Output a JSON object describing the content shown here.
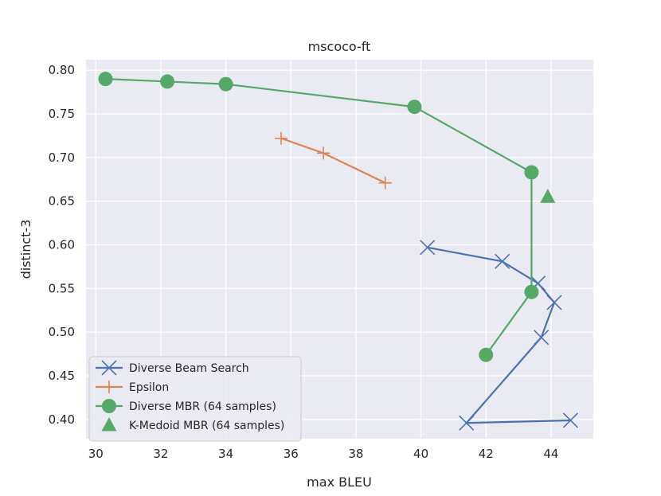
{
  "chart_data": {
    "type": "scatter",
    "title": "mscoco-ft",
    "xlabel": "max BLEU",
    "ylabel": "distinct-3",
    "xlim": [
      29.7,
      45.3
    ],
    "ylim": [
      0.378,
      0.812
    ],
    "xticks": [
      30,
      32,
      34,
      36,
      38,
      40,
      42,
      44
    ],
    "yticks": [
      0.4,
      0.45,
      0.5,
      0.55,
      0.6,
      0.65,
      0.7,
      0.75,
      0.8
    ],
    "xtick_labels": [
      "30",
      "32",
      "34",
      "36",
      "38",
      "40",
      "42",
      "44"
    ],
    "ytick_labels": [
      "0.40",
      "0.45",
      "0.50",
      "0.55",
      "0.60",
      "0.65",
      "0.70",
      "0.75",
      "0.80"
    ],
    "grid": true,
    "legend_position": "lower-left",
    "series": [
      {
        "name": "Diverse Beam Search",
        "color": "#4c72b0",
        "marker": "x",
        "line": true,
        "points": [
          {
            "x": 40.2,
            "y": 0.597
          },
          {
            "x": 42.5,
            "y": 0.581
          },
          {
            "x": 43.6,
            "y": 0.556
          },
          {
            "x": 44.1,
            "y": 0.534
          },
          {
            "x": 43.7,
            "y": 0.494
          },
          {
            "x": 41.4,
            "y": 0.396
          },
          {
            "x": 44.6,
            "y": 0.399
          }
        ]
      },
      {
        "name": "Epsilon",
        "color": "#dd8452",
        "marker": "plus",
        "line": true,
        "points": [
          {
            "x": 35.7,
            "y": 0.722
          },
          {
            "x": 37.0,
            "y": 0.705
          },
          {
            "x": 38.9,
            "y": 0.671
          }
        ]
      },
      {
        "name": "Diverse MBR (64 samples)",
        "color": "#55a868",
        "marker": "circle",
        "line": true,
        "points": [
          {
            "x": 30.3,
            "y": 0.79
          },
          {
            "x": 32.2,
            "y": 0.787
          },
          {
            "x": 34.0,
            "y": 0.784
          },
          {
            "x": 39.8,
            "y": 0.758
          },
          {
            "x": 43.4,
            "y": 0.683
          },
          {
            "x": 43.4,
            "y": 0.546
          },
          {
            "x": 42.0,
            "y": 0.474
          }
        ]
      },
      {
        "name": "K-Medoid MBR (64 samples)",
        "color": "#55a868",
        "marker": "triangle",
        "line": false,
        "points": [
          {
            "x": 43.9,
            "y": 0.655
          }
        ]
      }
    ]
  }
}
